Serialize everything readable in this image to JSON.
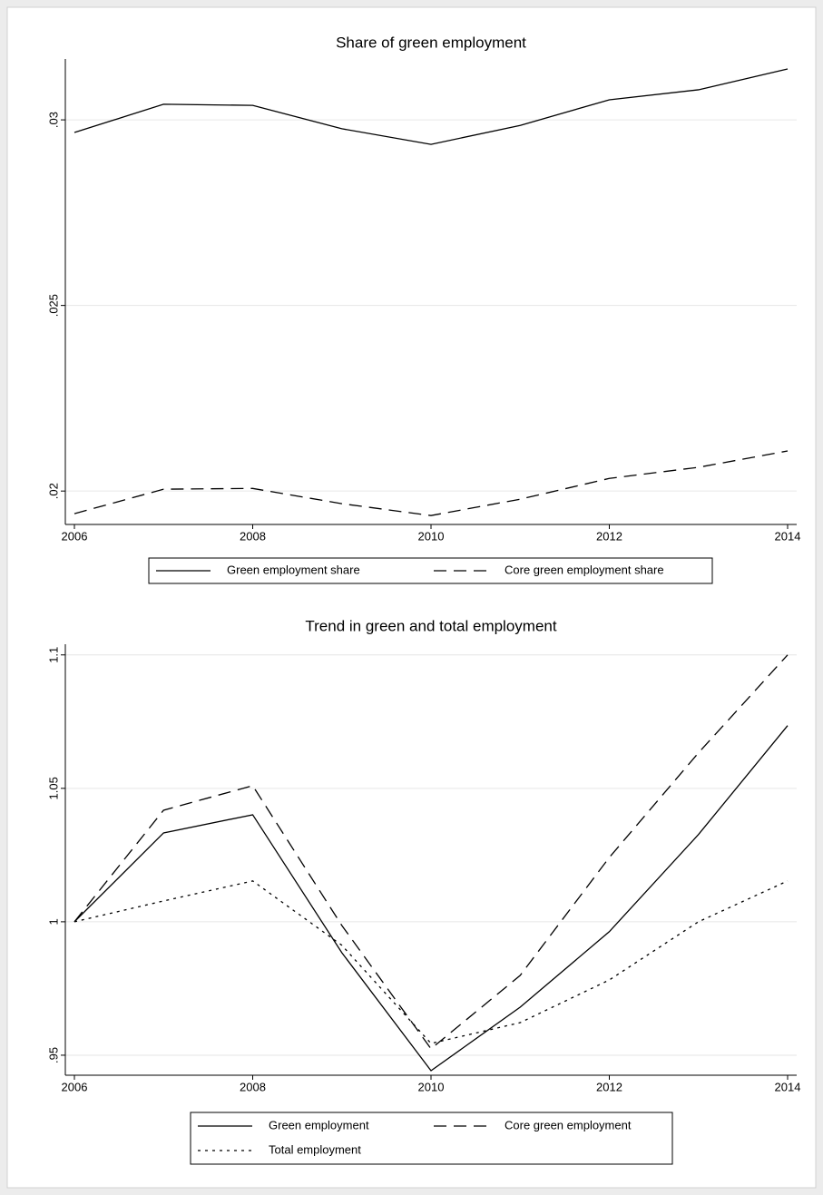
{
  "chart_data": [
    {
      "type": "line",
      "title": "Share of green employment",
      "x": [
        2006,
        2007,
        2008,
        2009,
        2010,
        2011,
        2012,
        2013,
        2014
      ],
      "series": [
        {
          "name": "Green employment share",
          "color": "#000000",
          "style": "solid",
          "values": [
            0.02966,
            0.03042,
            0.03039,
            0.02976,
            0.02934,
            0.02985,
            0.03054,
            0.03081,
            0.03137
          ]
        },
        {
          "name": "Core green employment share",
          "color": "#000000",
          "style": "dash",
          "values": [
            0.01939,
            0.02005,
            0.02007,
            0.01966,
            0.01934,
            0.01978,
            0.02034,
            0.02064,
            0.02108
          ]
        }
      ],
      "xlim": [
        2006,
        2014
      ],
      "xticks": [
        2006,
        2008,
        2010,
        2012,
        2014
      ],
      "ylim": [
        0.0191,
        0.03164
      ],
      "yticks": [
        {
          "value": 0.02,
          "label": ".02"
        },
        {
          "value": 0.025,
          "label": ".025"
        },
        {
          "value": 0.03,
          "label": ".03"
        }
      ],
      "grid": true
    },
    {
      "type": "line",
      "title": "Trend in green and total employment",
      "x": [
        2006,
        2007,
        2008,
        2009,
        2010,
        2011,
        2012,
        2013,
        2014
      ],
      "series": [
        {
          "name": "Green employment",
          "color": "#000000",
          "style": "solid",
          "values": [
            1,
            1.0333,
            1.0401,
            0.9884,
            0.9442,
            0.968,
            0.9963,
            1.0327,
            1.0735
          ]
        },
        {
          "name": "Core green employment",
          "color": "#000000",
          "style": "dash",
          "values": [
            1,
            1.0418,
            1.051,
            0.9986,
            0.9524,
            0.9799,
            1.0241,
            1.0633,
            1.1
          ]
        },
        {
          "name": "Total employment",
          "color": "#000000",
          "style": "dot",
          "values": [
            1,
            1.0078,
            1.0153,
            0.9912,
            0.9544,
            0.9622,
            0.9782,
            1.0,
            1.0153
          ]
        }
      ],
      "xlim": [
        2006,
        2014
      ],
      "xticks": [
        2006,
        2008,
        2010,
        2012,
        2014
      ],
      "ylim": [
        0.9425,
        1.104
      ],
      "yticks": [
        {
          "value": 0.95,
          "label": ".95"
        },
        1,
        1.05,
        1.1
      ],
      "grid": true
    }
  ]
}
